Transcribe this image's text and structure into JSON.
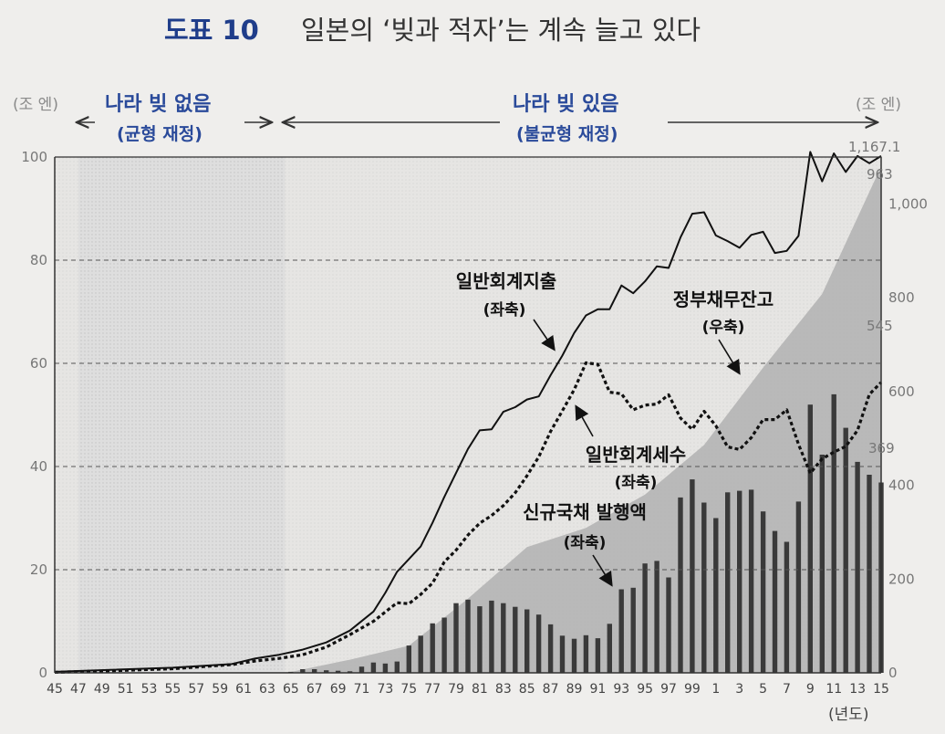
{
  "header": {
    "number": "도표 10",
    "title": "일본의 ‘빚과 적자’는 계속 늘고 있다"
  },
  "units": {
    "left": "(조 엔)",
    "right": "(조 엔)",
    "x": "(년도)"
  },
  "periods": [
    {
      "label": "나라 빚 없음",
      "sublabel": "(균형 재정)"
    },
    {
      "label": "나라 빚 있음",
      "sublabel": "(불균형 재정)"
    }
  ],
  "chart_data": {
    "type": "line",
    "x_start": 1945,
    "x_end": 2015,
    "x_tick_labels": [
      "45",
      "47",
      "49",
      "51",
      "53",
      "55",
      "57",
      "59",
      "61",
      "63",
      "65",
      "67",
      "69",
      "71",
      "73",
      "75",
      "77",
      "79",
      "81",
      "83",
      "85",
      "87",
      "89",
      "91",
      "93",
      "95",
      "97",
      "99",
      "1",
      "3",
      "5",
      "7",
      "9",
      "11",
      "13",
      "15"
    ],
    "y_left": {
      "ylim": [
        0,
        100
      ],
      "ticks": [
        "0",
        "20",
        "40",
        "60",
        "80",
        "100"
      ]
    },
    "y_right": {
      "ylim": [
        0,
        1100
      ],
      "ticks": [
        "0",
        "200",
        "400",
        "600",
        "800",
        "1,000"
      ]
    },
    "series": [
      {
        "name": "일반회계지출",
        "axis_note": "(좌축)",
        "axis": "left",
        "style": "line",
        "years": [
          1945,
          1950,
          1955,
          1960,
          1962,
          1964,
          1966,
          1968,
          1970,
          1972,
          1973,
          1974,
          1976,
          1977,
          1978,
          1979,
          1980,
          1981,
          1982,
          1983,
          1984,
          1985,
          1986,
          1987,
          1988,
          1989,
          1990,
          1991,
          1992,
          1993,
          1994,
          1995,
          1996,
          1997,
          1998,
          1999,
          2000,
          2001,
          2002,
          2003,
          2004,
          2005,
          2006,
          2007,
          2008,
          2009,
          2010,
          2011,
          2012,
          2013,
          2014,
          2015
        ],
        "values": [
          0.2,
          0.6,
          1.0,
          1.7,
          2.8,
          3.5,
          4.5,
          5.9,
          8.2,
          11.9,
          15.5,
          19.6,
          24.5,
          29.1,
          34.1,
          38.8,
          43.4,
          47.0,
          47.2,
          50.6,
          51.5,
          53.0,
          53.6,
          57.7,
          61.5,
          65.9,
          69.3,
          70.5,
          70.5,
          75.1,
          73.6,
          75.9,
          78.8,
          78.5,
          84.4,
          89.0,
          89.3,
          84.8,
          83.7,
          82.4,
          84.9,
          85.5,
          81.4,
          81.8,
          84.7,
          101.0,
          95.3,
          100.7,
          97.1,
          100.2,
          98.8,
          100.2
        ]
      },
      {
        "name": "일반회계세수",
        "axis_note": "(좌축)",
        "axis": "left",
        "style": "dotted",
        "years": [
          1945,
          1950,
          1955,
          1960,
          1962,
          1964,
          1966,
          1968,
          1970,
          1972,
          1974,
          1975,
          1976,
          1977,
          1978,
          1979,
          1980,
          1981,
          1982,
          1983,
          1984,
          1985,
          1986,
          1987,
          1988,
          1989,
          1990,
          1991,
          1992,
          1993,
          1994,
          1995,
          1996,
          1997,
          1998,
          1999,
          2000,
          2001,
          2002,
          2003,
          2004,
          2005,
          2006,
          2007,
          2008,
          2009,
          2010,
          2011,
          2012,
          2013,
          2014,
          2015
        ],
        "values": [
          0.1,
          0.4,
          0.8,
          1.6,
          2.3,
          2.8,
          3.5,
          5.0,
          7.4,
          10.0,
          13.6,
          13.4,
          15.2,
          17.4,
          21.5,
          23.8,
          26.7,
          29.0,
          30.5,
          32.4,
          34.9,
          38.2,
          41.9,
          46.8,
          50.8,
          54.9,
          60.1,
          59.8,
          54.4,
          54.1,
          51.0,
          51.9,
          52.1,
          53.9,
          49.4,
          47.2,
          50.7,
          47.9,
          43.8,
          43.3,
          45.6,
          49.1,
          49.1,
          51.0,
          44.3,
          38.7,
          41.5,
          42.8,
          43.9,
          47.0,
          54.0,
          56.3
        ]
      },
      {
        "name": "신규국채 발행액",
        "axis_note": "(좌축)",
        "axis": "left",
        "style": "bar",
        "years": [
          1965,
          1966,
          1967,
          1968,
          1969,
          1970,
          1971,
          1972,
          1973,
          1974,
          1975,
          1976,
          1977,
          1978,
          1979,
          1980,
          1981,
          1982,
          1983,
          1984,
          1985,
          1986,
          1987,
          1988,
          1989,
          1990,
          1991,
          1992,
          1993,
          1994,
          1995,
          1996,
          1997,
          1998,
          1999,
          2000,
          2001,
          2002,
          2003,
          2004,
          2005,
          2006,
          2007,
          2008,
          2009,
          2010,
          2011,
          2012,
          2013,
          2014,
          2015
        ],
        "values": [
          0.2,
          0.7,
          0.7,
          0.5,
          0.4,
          0.3,
          1.2,
          2.0,
          1.8,
          2.2,
          5.3,
          7.2,
          9.6,
          10.7,
          13.5,
          14.2,
          12.9,
          14.0,
          13.5,
          12.8,
          12.3,
          11.3,
          9.4,
          7.2,
          6.6,
          7.3,
          6.7,
          9.5,
          16.2,
          16.5,
          21.2,
          21.7,
          18.5,
          34.0,
          37.5,
          33.0,
          30.0,
          35.0,
          35.3,
          35.5,
          31.3,
          27.5,
          25.4,
          33.2,
          52.0,
          42.3,
          54.0,
          47.5,
          40.9,
          38.4,
          36.9
        ]
      },
      {
        "name": "정부채무잔고",
        "axis_note": "(우축)",
        "axis": "right",
        "style": "area",
        "years": [
          1945,
          1965,
          1970,
          1975,
          1980,
          1985,
          1990,
          1995,
          2000,
          2005,
          2010,
          2015
        ],
        "values": [
          0,
          2,
          28,
          58,
          158,
          268,
          309,
          380,
          486,
          651,
          808,
          1080
        ]
      }
    ],
    "annotations": [
      "1,167.1",
      "963",
      "545",
      "369"
    ]
  }
}
